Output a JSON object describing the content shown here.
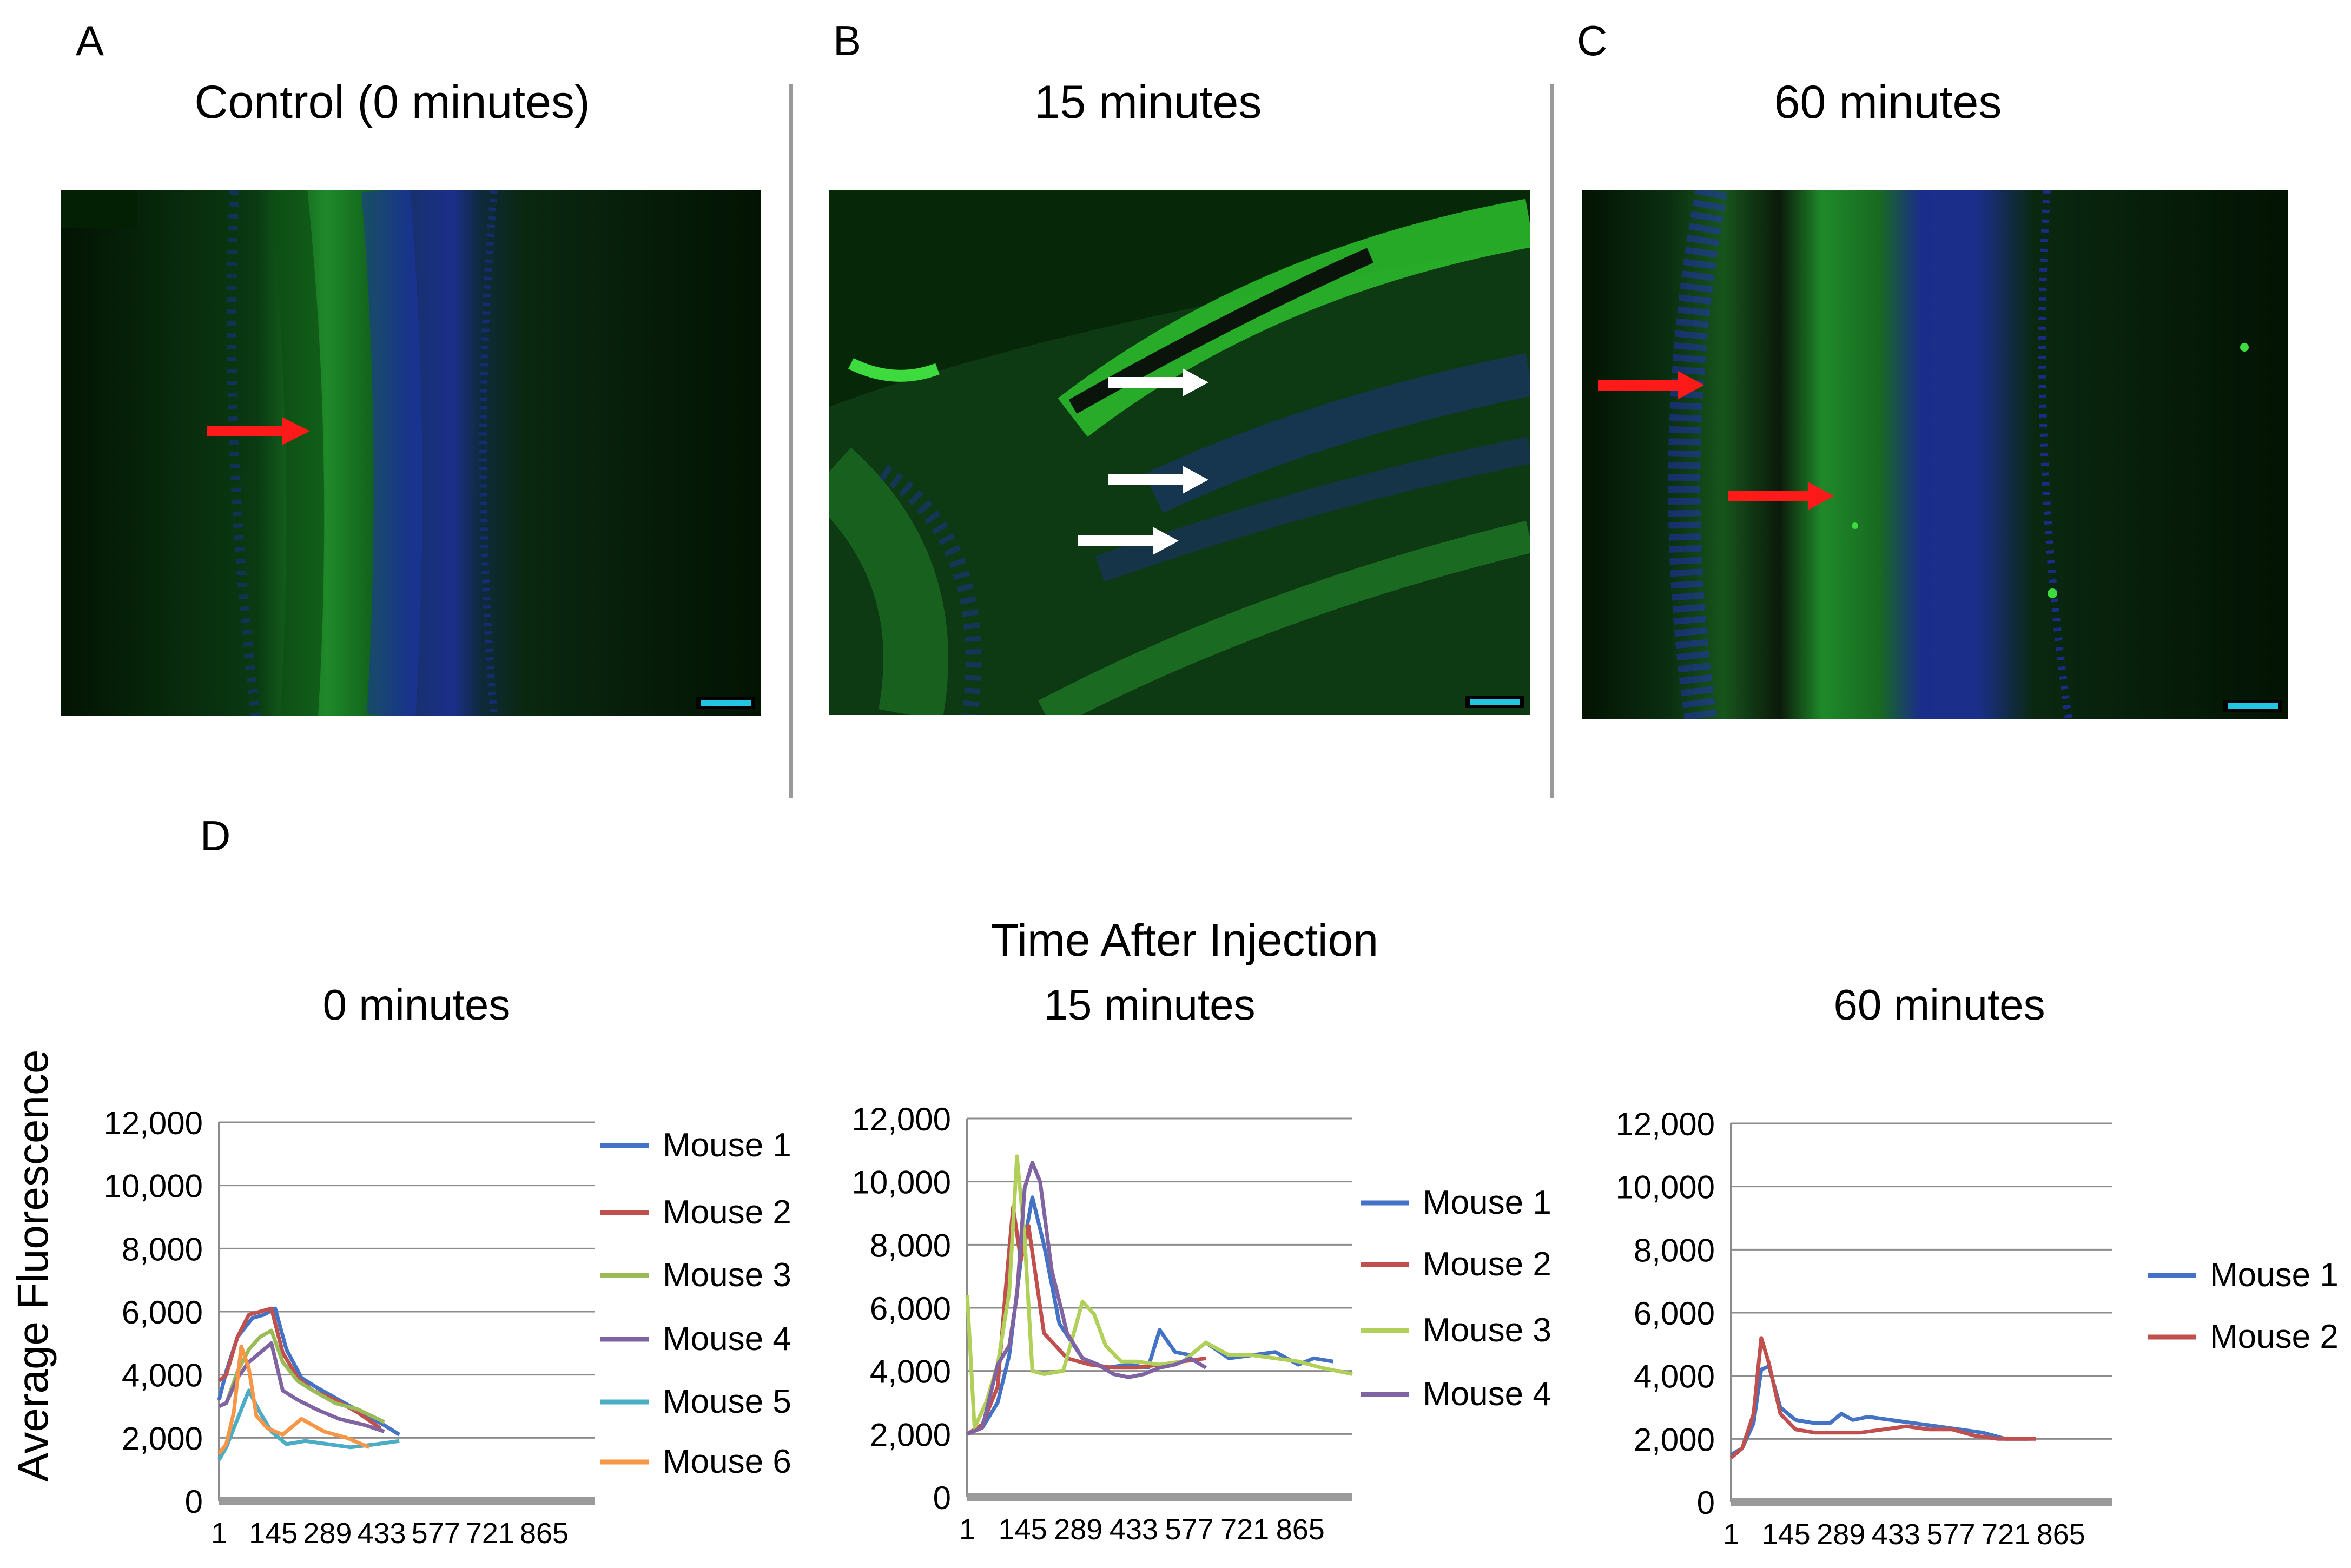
{
  "figure": {
    "panel_labels": [
      "A",
      "B",
      "C",
      "D"
    ],
    "micro_titles": [
      "Control (0 minutes)",
      "15 minutes",
      "60 minutes"
    ],
    "charts_header": "Time After Injection"
  },
  "colors": {
    "mouse1": "#4472c4",
    "mouse2": "#c0504d",
    "mouse3": "#9bbb59",
    "mouse4": "#8064a2",
    "mouse5": "#4bacc6",
    "mouse6": "#f79646",
    "mouse3_15min": "#b1d05a",
    "arrow_red": "#ff1a1a",
    "arrow_white": "#ffffff",
    "stain_green": "#2dbf2d",
    "stain_blue": "#2431d6"
  },
  "chart_data": [
    {
      "type": "line",
      "title": "0 minutes",
      "ylabel": "Average Fluorescence",
      "ylim": [
        0,
        12000
      ],
      "yticks": [
        "0",
        "2,000",
        "4,000",
        "6,000",
        "8,000",
        "10,000",
        "12,000"
      ],
      "yticks_values": [
        0,
        2000,
        4000,
        6000,
        8000,
        10000,
        12000
      ],
      "xlim": [
        1,
        1000
      ],
      "xticks": [
        "1",
        "145",
        "289",
        "433",
        "577",
        "721",
        "865"
      ],
      "xticks_values": [
        1,
        145,
        289,
        433,
        577,
        721,
        865
      ],
      "series": [
        {
          "name": "Mouse 1",
          "color": "#4472c4",
          "x": [
            1,
            20,
            50,
            90,
            120,
            150,
            180,
            220,
            260,
            320,
            380,
            440,
            480
          ],
          "y": [
            3200,
            4100,
            5200,
            5800,
            5900,
            6100,
            4800,
            3900,
            3600,
            3200,
            2800,
            2400,
            2100
          ]
        },
        {
          "name": "Mouse 2",
          "color": "#c0504d",
          "x": [
            1,
            20,
            50,
            80,
            110,
            140,
            170,
            210,
            250,
            310,
            370,
            430
          ],
          "y": [
            3800,
            4000,
            5200,
            5900,
            6000,
            6100,
            4700,
            3900,
            3500,
            3200,
            2800,
            2300
          ]
        },
        {
          "name": "Mouse 3",
          "color": "#9bbb59",
          "x": [
            1,
            20,
            50,
            80,
            110,
            140,
            170,
            210,
            250,
            310,
            370,
            440
          ],
          "y": [
            3000,
            3100,
            4100,
            4800,
            5200,
            5400,
            4400,
            3800,
            3500,
            3100,
            2900,
            2500
          ]
        },
        {
          "name": "Mouse 4",
          "color": "#8064a2",
          "x": [
            1,
            20,
            50,
            80,
            110,
            140,
            170,
            210,
            260,
            320,
            390,
            440
          ],
          "y": [
            3000,
            3100,
            3900,
            4400,
            4700,
            5000,
            3500,
            3200,
            2900,
            2600,
            2400,
            2200
          ]
        },
        {
          "name": "Mouse 5",
          "color": "#4bacc6",
          "x": [
            1,
            20,
            50,
            80,
            110,
            140,
            180,
            230,
            290,
            350,
            420,
            480
          ],
          "y": [
            1300,
            1700,
            2600,
            3500,
            2800,
            2200,
            1800,
            1900,
            1800,
            1700,
            1800,
            1900
          ]
        },
        {
          "name": "Mouse 6",
          "color": "#f79646",
          "x": [
            1,
            20,
            40,
            60,
            80,
            100,
            130,
            170,
            220,
            280,
            340,
            400
          ],
          "y": [
            1500,
            1800,
            2800,
            4900,
            4200,
            2700,
            2300,
            2100,
            2600,
            2200,
            2000,
            1700
          ]
        }
      ]
    },
    {
      "type": "line",
      "title": "15 minutes",
      "ylabel": "",
      "ylim": [
        0,
        12000
      ],
      "yticks": [
        "0",
        "2,000",
        "4,000",
        "6,000",
        "8,000",
        "10,000",
        "12,000"
      ],
      "yticks_values": [
        0,
        2000,
        4000,
        6000,
        8000,
        10000,
        12000
      ],
      "xlim": [
        1,
        1000
      ],
      "xticks": [
        "1",
        "145",
        "289",
        "433",
        "577",
        "721",
        "865"
      ],
      "xticks_values": [
        1,
        145,
        289,
        433,
        577,
        721,
        865
      ],
      "series": [
        {
          "name": "Mouse 1",
          "color": "#4472c4",
          "x": [
            1,
            40,
            80,
            110,
            140,
            170,
            200,
            240,
            300,
            360,
            420,
            470,
            500,
            540,
            580,
            620,
            680,
            740,
            800,
            860,
            900,
            950
          ],
          "y": [
            2000,
            2200,
            3000,
            4500,
            7500,
            9500,
            8000,
            5500,
            4400,
            4100,
            4200,
            4100,
            5300,
            4600,
            4500,
            4900,
            4400,
            4500,
            4600,
            4200,
            4400,
            4300
          ]
        },
        {
          "name": "Mouse 2",
          "color": "#c0504d",
          "x": [
            1,
            40,
            80,
            100,
            120,
            140,
            160,
            200,
            260,
            320,
            380,
            440,
            500,
            560,
            620
          ],
          "y": [
            2000,
            2300,
            3500,
            6500,
            9200,
            7500,
            8600,
            5200,
            4400,
            4200,
            4100,
            4100,
            4200,
            4300,
            4400
          ]
        },
        {
          "name": "Mouse 3",
          "color": "#b1d05a",
          "x": [
            1,
            20,
            50,
            80,
            110,
            130,
            150,
            170,
            200,
            250,
            300,
            330,
            360,
            400,
            440,
            500,
            560,
            620,
            680,
            740,
            800,
            860,
            920,
            1000
          ],
          "y": [
            6400,
            2200,
            3000,
            4200,
            6500,
            10800,
            8200,
            4000,
            3900,
            4000,
            6200,
            5800,
            4800,
            4300,
            4300,
            4200,
            4300,
            4900,
            4500,
            4500,
            4400,
            4300,
            4100,
            3900
          ]
        },
        {
          "name": "Mouse 4",
          "color": "#8064a2",
          "x": [
            1,
            40,
            80,
            110,
            130,
            150,
            170,
            190,
            220,
            260,
            300,
            340,
            380,
            420,
            460,
            500,
            540,
            580,
            620
          ],
          "y": [
            2000,
            2200,
            4200,
            4800,
            6400,
            9800,
            10600,
            10000,
            7200,
            5200,
            4400,
            4200,
            3900,
            3800,
            3900,
            4100,
            4200,
            4400,
            4100
          ]
        }
      ]
    },
    {
      "type": "line",
      "title": "60 minutes",
      "ylabel": "",
      "ylim": [
        0,
        12000
      ],
      "yticks": [
        "0",
        "2,000",
        "4,000",
        "6,000",
        "8,000",
        "10,000",
        "12,000"
      ],
      "yticks_values": [
        0,
        2000,
        4000,
        6000,
        8000,
        10000,
        12000
      ],
      "xlim": [
        1,
        1000
      ],
      "xticks": [
        "1",
        "145",
        "289",
        "433",
        "577",
        "721",
        "865"
      ],
      "xticks_values": [
        1,
        145,
        289,
        433,
        577,
        721,
        865
      ],
      "series": [
        {
          "name": "Mouse 1",
          "color": "#4472c4",
          "x": [
            1,
            30,
            60,
            80,
            100,
            130,
            170,
            220,
            260,
            290,
            320,
            360,
            420,
            480,
            540,
            600,
            660,
            720,
            780
          ],
          "y": [
            1500,
            1700,
            2500,
            4200,
            4300,
            3000,
            2600,
            2500,
            2500,
            2800,
            2600,
            2700,
            2600,
            2500,
            2400,
            2300,
            2200,
            2000,
            2000
          ]
        },
        {
          "name": "Mouse 2",
          "color": "#c0504d",
          "x": [
            1,
            30,
            60,
            80,
            100,
            130,
            170,
            220,
            280,
            340,
            400,
            460,
            520,
            580,
            640,
            700,
            760,
            800
          ],
          "y": [
            1400,
            1700,
            2800,
            5200,
            4400,
            2800,
            2300,
            2200,
            2200,
            2200,
            2300,
            2400,
            2300,
            2300,
            2100,
            2000,
            2000,
            2000
          ]
        }
      ]
    }
  ]
}
